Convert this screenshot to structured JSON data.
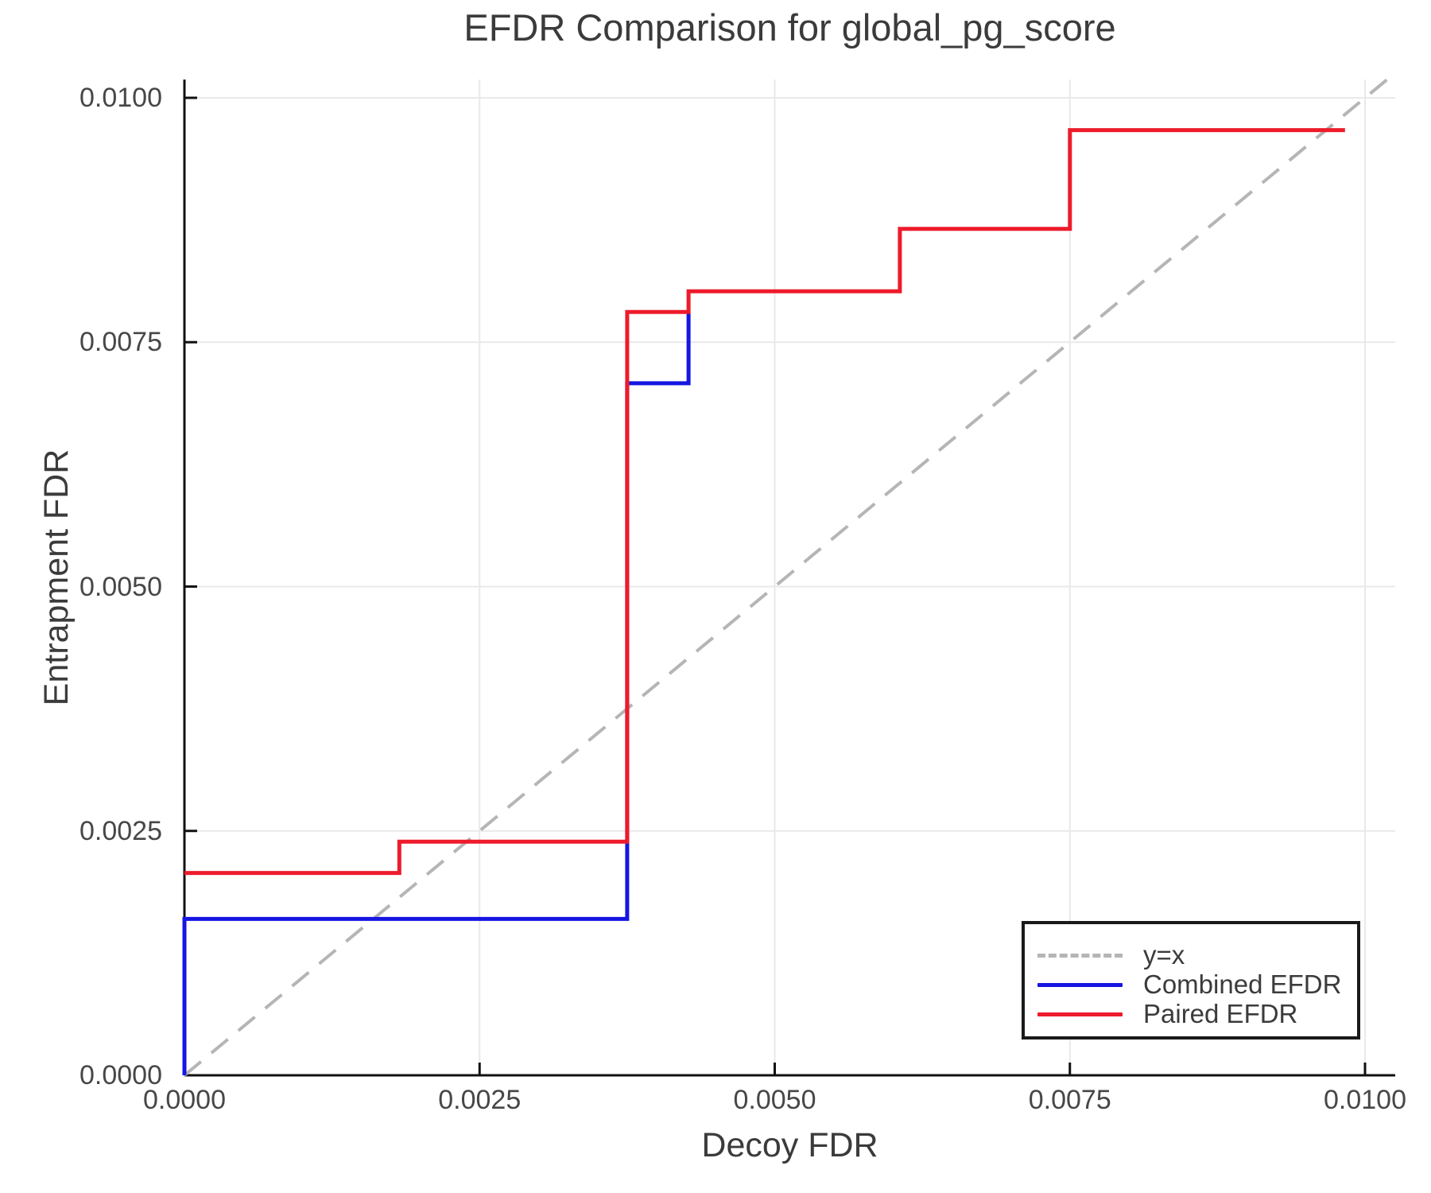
{
  "chart_data": {
    "type": "line",
    "title": "EFDR Comparison for global_pg_score",
    "xlabel": "Decoy FDR",
    "ylabel": "Entrapment FDR",
    "xlim": [
      0.0,
      0.0103
    ],
    "ylim": [
      0.0,
      0.0102
    ],
    "grid": true,
    "legend_position": "lower right",
    "x_ticks": [
      {
        "value": 0.0,
        "label": "0.0000"
      },
      {
        "value": 0.0025,
        "label": "0.0025"
      },
      {
        "value": 0.005,
        "label": "0.0050"
      },
      {
        "value": 0.0075,
        "label": "0.0075"
      },
      {
        "value": 0.01,
        "label": "0.0100"
      }
    ],
    "y_ticks": [
      {
        "value": 0.0,
        "label": "0.0000"
      },
      {
        "value": 0.0025,
        "label": "0.0025"
      },
      {
        "value": 0.005,
        "label": "0.0050"
      },
      {
        "value": 0.0075,
        "label": "0.0075"
      },
      {
        "value": 0.01,
        "label": "0.0100"
      }
    ],
    "gridline_values": {
      "x": [
        0.0025,
        0.005,
        0.0075,
        0.01
      ],
      "y": [
        0.0025,
        0.005,
        0.0075,
        0.01
      ]
    },
    "series": [
      {
        "name": "y=x",
        "style": "dashed",
        "color": "#b5b5b5",
        "points": [
          [
            0.0,
            0.0
          ],
          [
            0.010187,
            0.010187
          ]
        ],
        "note": "reference diagonal"
      },
      {
        "name": "Combined EFDR",
        "style": "step",
        "color": "#1616e2",
        "points": [
          [
            0.0,
            0.0
          ],
          [
            0.0,
            0.0016
          ],
          [
            0.00375,
            0.0016
          ],
          [
            0.00375,
            0.00708
          ],
          [
            0.00427,
            0.00708
          ],
          [
            0.00427,
            0.0078
          ]
        ],
        "note": "merges under Paired EFDR curve beyond x=0.00427"
      },
      {
        "name": "Paired EFDR",
        "style": "step",
        "color": "#ed1b2b",
        "points": [
          [
            0.0,
            0.00207
          ],
          [
            0.00182,
            0.00207
          ],
          [
            0.00182,
            0.00239
          ],
          [
            0.00375,
            0.00239
          ],
          [
            0.00375,
            0.00781
          ],
          [
            0.00427,
            0.00781
          ],
          [
            0.00427,
            0.00802
          ],
          [
            0.00606,
            0.00802
          ],
          [
            0.00606,
            0.00866
          ],
          [
            0.0075,
            0.00866
          ],
          [
            0.0075,
            0.00967
          ],
          [
            0.00983,
            0.00967
          ]
        ]
      }
    ]
  },
  "legend": {
    "entries": [
      {
        "label": "y=x",
        "color": "#b5b5b5",
        "style": "dashed"
      },
      {
        "label": "Combined EFDR",
        "color": "#1616e2",
        "style": "solid"
      },
      {
        "label": "Paired EFDR",
        "color": "#ed1b2b",
        "style": "solid"
      }
    ]
  },
  "colors": {
    "grid": "#e9e9e9",
    "spine": "#111111",
    "tick_text": "#474747",
    "label_text": "#3b3b3b",
    "background": "#ffffff"
  }
}
